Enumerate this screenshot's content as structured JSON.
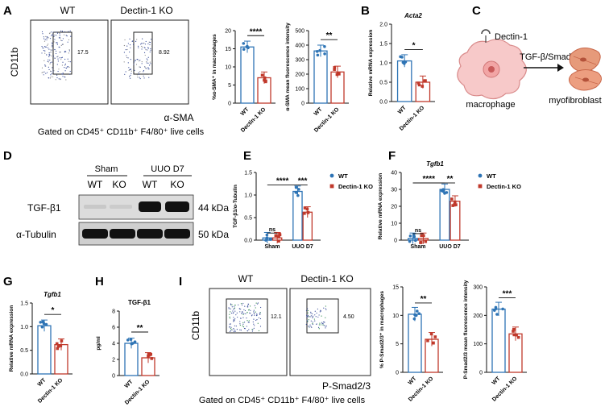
{
  "colors": {
    "wt": "#2e74b5",
    "ko": "#c0392b",
    "cell": "#f7c9c9",
    "fibro": "#e08a6a"
  },
  "panels": {
    "A": {
      "letter": "A",
      "wt_title": "WT",
      "ko_title": "Dectin-1 KO",
      "yaxis": "CD11b",
      "xaxis": "α-SMA",
      "gate_wt": "17.5",
      "gate_ko": "8.92",
      "caption": "Gated on CD45⁺ CD11b⁺ F4/80⁺ live cells"
    },
    "B": {
      "letter": "B"
    },
    "C": {
      "letter": "C",
      "receptor": "Dectin-1",
      "arrow": "TGF-β/Smad",
      "source": "macrophage",
      "target": "myofibroblast"
    },
    "D": {
      "letter": "D",
      "group1": "Sham",
      "group2": "UUO D7",
      "lanes": [
        "WT",
        "KO",
        "WT",
        "KO"
      ],
      "rows": [
        {
          "name": "TGF-β1",
          "kda": "44 kDa"
        },
        {
          "name": "α-Tubulin",
          "kda": "50 kDa"
        }
      ]
    },
    "E": {
      "letter": "E"
    },
    "F": {
      "letter": "F"
    },
    "G": {
      "letter": "G"
    },
    "H": {
      "letter": "H"
    },
    "I": {
      "letter": "I",
      "wt_title": "WT",
      "ko_title": "Dectin-1 KO",
      "yaxis": "CD11b",
      "xaxis": "P-Smad2/3",
      "gate_wt": "12.1",
      "gate_ko": "4.50",
      "caption": "Gated on CD45⁺ CD11b⁺ F4/80⁺ live cells"
    }
  },
  "chart_data": [
    {
      "id": "A-pct",
      "type": "bar",
      "ylabel": "%α-SMA⁺ in macrophages",
      "ylim": [
        0,
        20
      ],
      "yticks": [
        0,
        5,
        10,
        15,
        20
      ],
      "categories": [
        "WT",
        "Dectin-1 KO"
      ],
      "values": [
        15.5,
        7
      ],
      "sig": "****"
    },
    {
      "id": "A-mfi",
      "type": "bar",
      "ylabel": "α-SMA mean fluorescence intensity",
      "ylim": [
        0,
        500
      ],
      "yticks": [
        0,
        100,
        200,
        300,
        400,
        500
      ],
      "categories": [
        "WT",
        "Dectin-1 KO"
      ],
      "values": [
        360,
        215
      ],
      "sig": "**"
    },
    {
      "id": "B",
      "type": "bar",
      "title": "Acta2",
      "ylabel": "Relative mRNA expression",
      "ylim": [
        0,
        2.0
      ],
      "yticks": [
        0.0,
        0.5,
        1.0,
        1.5,
        2.0
      ],
      "categories": [
        "WT",
        "Dectin-1 KO"
      ],
      "values": [
        1.05,
        0.5
      ],
      "sig": "*"
    },
    {
      "id": "E",
      "type": "bar",
      "ylabel": "TGF-β1/α-Tubulin",
      "ylim": [
        0,
        1.5
      ],
      "yticks": [
        0.0,
        0.5,
        1.0,
        1.5
      ],
      "categories": [
        "Sham",
        "UUO D7"
      ],
      "series": [
        {
          "name": "WT",
          "values": [
            0.05,
            1.08
          ]
        },
        {
          "name": "Dectin-1 KO",
          "values": [
            0.05,
            0.62
          ]
        }
      ],
      "sig": [
        "ns",
        "****",
        "***"
      ]
    },
    {
      "id": "F",
      "type": "bar",
      "title": "Tgfb1",
      "ylabel": "Relative mRNA expression",
      "ylim": [
        0,
        40
      ],
      "yticks": [
        0,
        10,
        20,
        30,
        40
      ],
      "categories": [
        "Sham",
        "UUO D7"
      ],
      "series": [
        {
          "name": "WT",
          "values": [
            1,
            30
          ]
        },
        {
          "name": "Dectin-1 KO",
          "values": [
            1,
            23
          ]
        }
      ],
      "sig": [
        "ns",
        "****",
        "**"
      ]
    },
    {
      "id": "G",
      "type": "bar",
      "title": "Tgfb1",
      "ylabel": "Relative mRNA expression",
      "ylim": [
        0,
        1.5
      ],
      "yticks": [
        0.0,
        0.5,
        1.0,
        1.5
      ],
      "categories": [
        "WT",
        "Dectin-1 KO"
      ],
      "values": [
        1.02,
        0.62
      ],
      "sig": "*"
    },
    {
      "id": "H",
      "type": "bar",
      "title": "TGF-β1",
      "ylabel": "pg/ml",
      "ylim": [
        0,
        8
      ],
      "yticks": [
        0,
        2,
        4,
        6,
        8
      ],
      "categories": [
        "WT",
        "Dectin-1 KO"
      ],
      "values": [
        4.0,
        2.2
      ],
      "sig": "**"
    },
    {
      "id": "I-pct",
      "type": "bar",
      "ylabel": "% P-Smad2/3⁺ in macrophages",
      "ylim": [
        0,
        15
      ],
      "yticks": [
        0,
        5,
        10,
        15
      ],
      "categories": [
        "WT",
        "Dectin-1 KO"
      ],
      "values": [
        10.2,
        5.8
      ],
      "sig": "**"
    },
    {
      "id": "I-mfi",
      "type": "bar",
      "ylabel": "P-Smad2/3 mean fluorescence intensity",
      "ylim": [
        0,
        300
      ],
      "yticks": [
        0,
        100,
        200,
        300
      ],
      "categories": [
        "WT",
        "Dectin-1 KO"
      ],
      "values": [
        222,
        135
      ],
      "sig": "***"
    }
  ]
}
